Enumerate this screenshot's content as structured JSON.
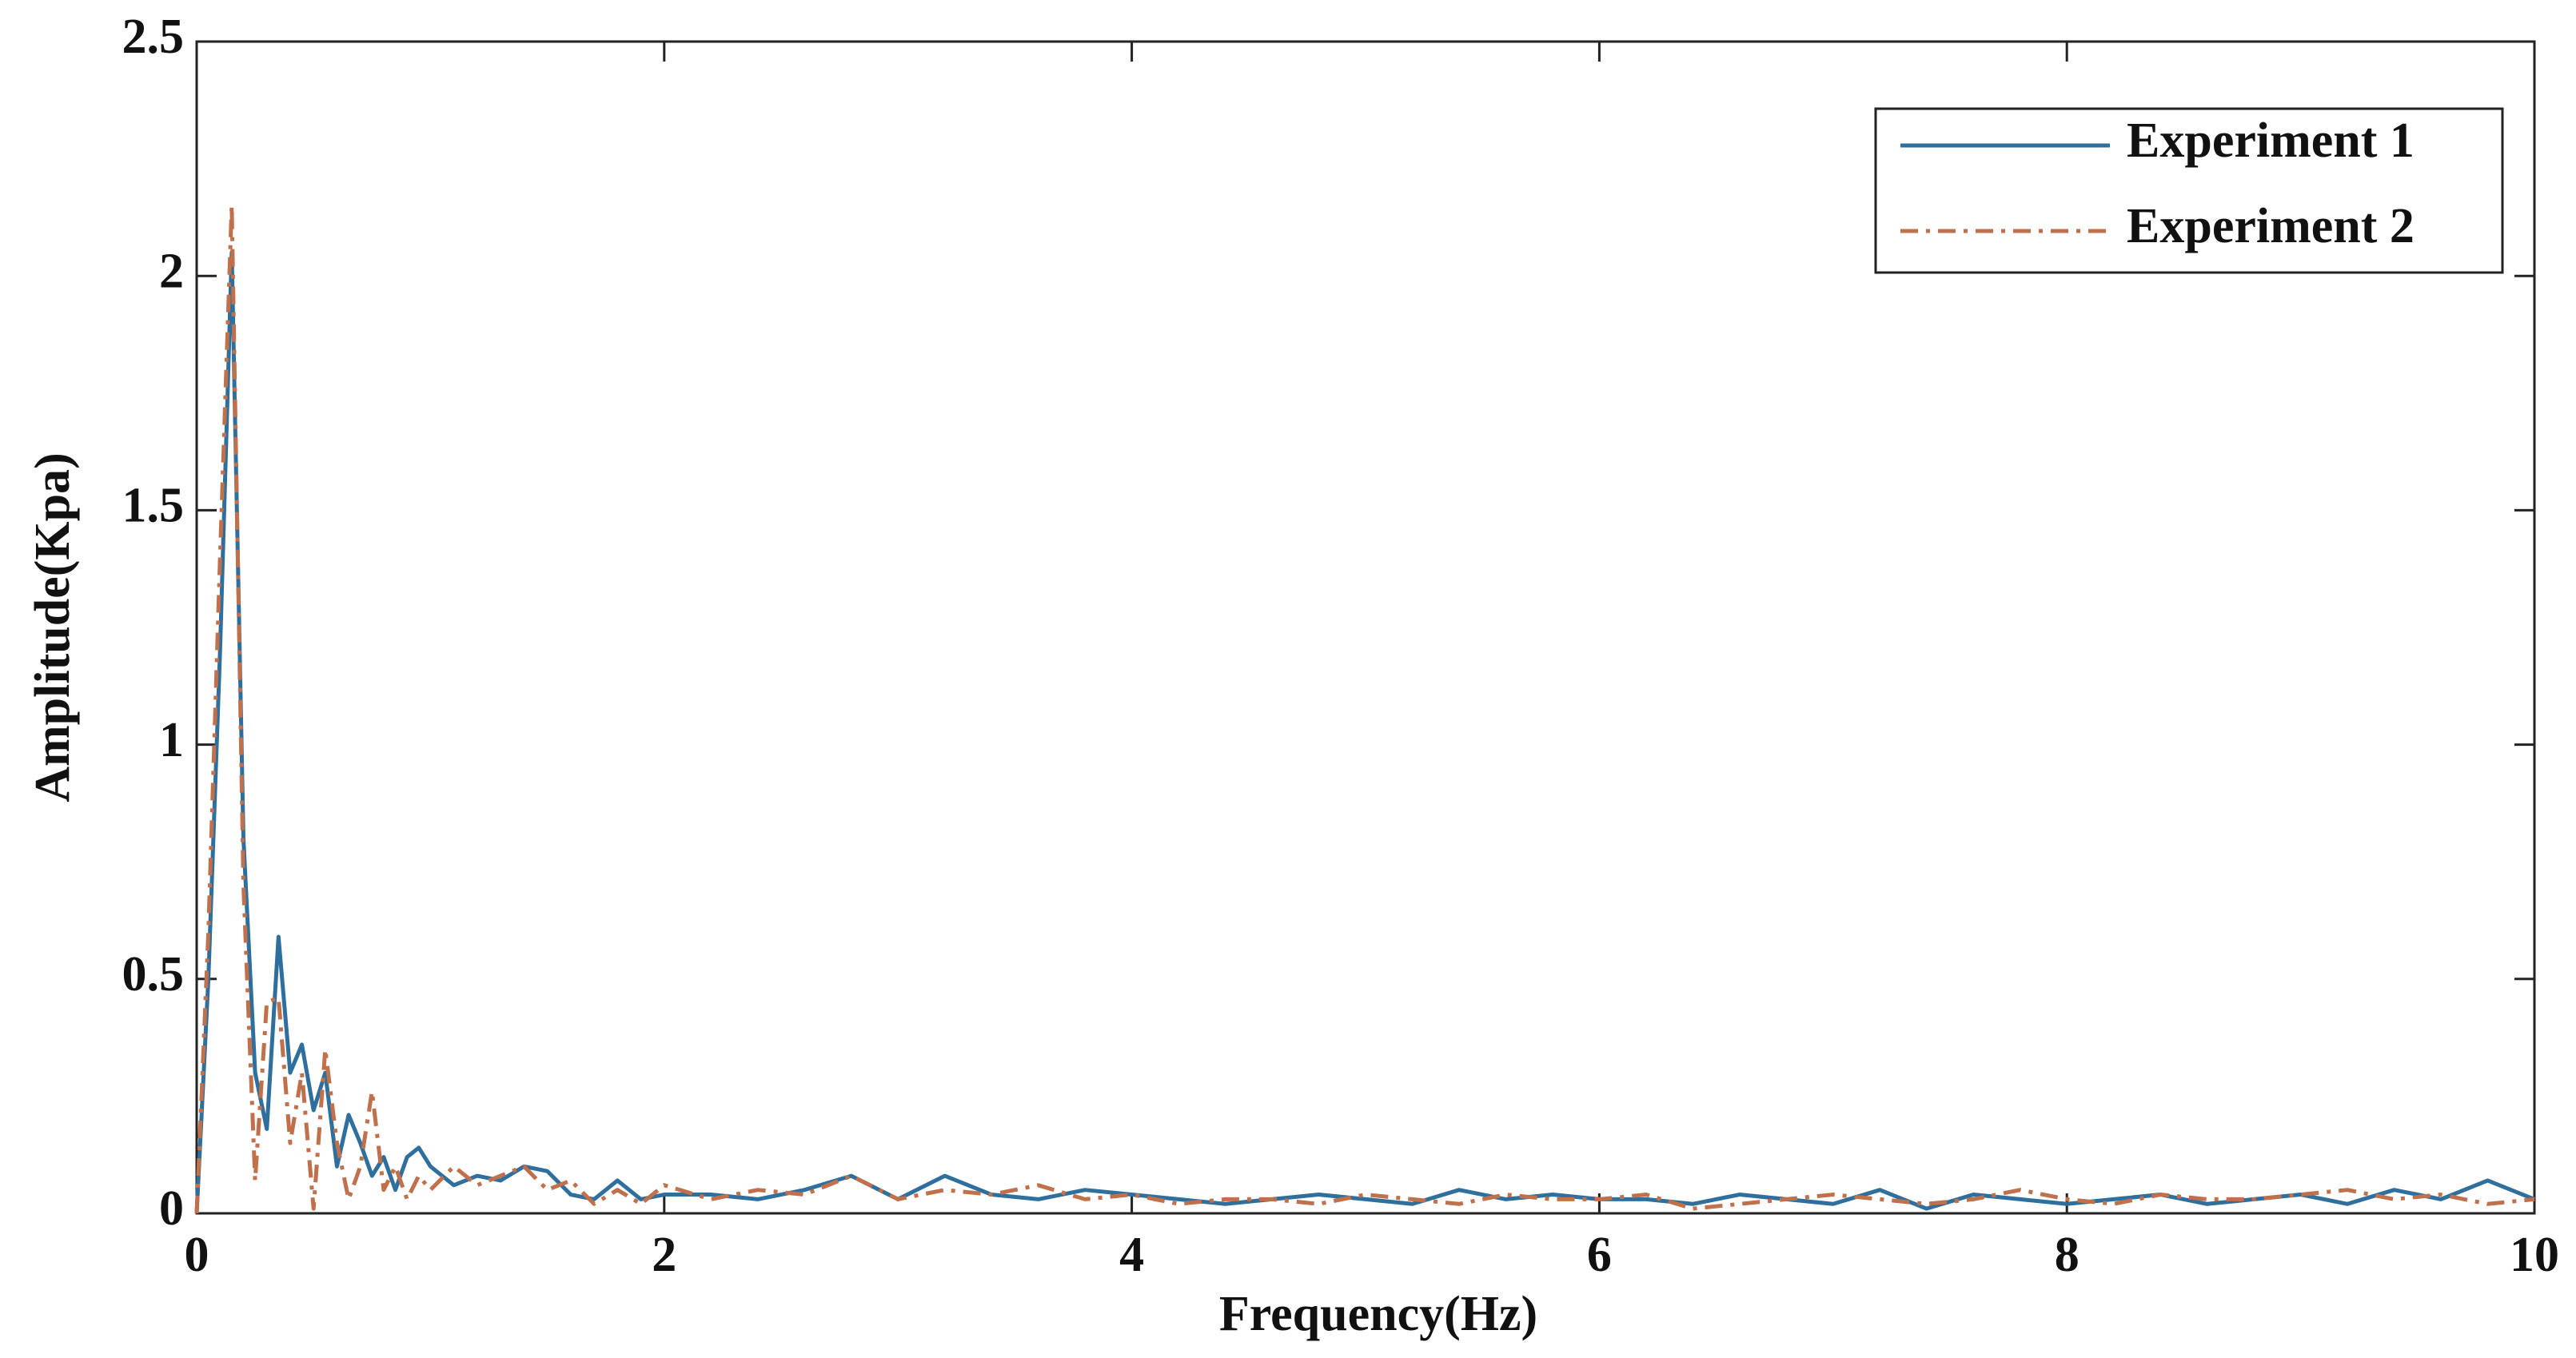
{
  "chart_data": {
    "type": "line",
    "xlabel": "Frequency(Hz)",
    "ylabel": "Amplitude(Kpa)",
    "x": [
      0,
      0.05,
      0.1,
      0.15,
      0.2,
      0.25,
      0.3,
      0.35,
      0.4,
      0.45,
      0.5,
      0.55,
      0.6,
      0.65,
      0.7,
      0.75,
      0.8,
      0.85,
      0.9,
      0.95,
      1.0,
      1.1,
      1.2,
      1.3,
      1.4,
      1.5,
      1.6,
      1.7,
      1.8,
      1.9,
      2.0,
      2.2,
      2.4,
      2.6,
      2.8,
      3.0,
      3.2,
      3.4,
      3.6,
      3.8,
      4.0,
      4.2,
      4.4,
      4.6,
      4.8,
      5.0,
      5.2,
      5.4,
      5.6,
      5.8,
      6.0,
      6.2,
      6.4,
      6.6,
      6.8,
      7.0,
      7.2,
      7.4,
      7.6,
      7.8,
      8.0,
      8.2,
      8.4,
      8.6,
      8.8,
      9.0,
      9.2,
      9.4,
      9.6,
      9.8,
      10.0
    ],
    "series": [
      {
        "name": "Experiment 1",
        "color": "#2e6f9e",
        "linestyle": "solid",
        "values": [
          0,
          0.5,
          1.2,
          2.05,
          0.8,
          0.3,
          0.18,
          0.59,
          0.3,
          0.36,
          0.22,
          0.3,
          0.1,
          0.21,
          0.15,
          0.08,
          0.12,
          0.05,
          0.12,
          0.14,
          0.1,
          0.06,
          0.08,
          0.07,
          0.1,
          0.09,
          0.04,
          0.03,
          0.07,
          0.03,
          0.04,
          0.04,
          0.03,
          0.05,
          0.08,
          0.03,
          0.08,
          0.04,
          0.03,
          0.05,
          0.04,
          0.03,
          0.02,
          0.03,
          0.04,
          0.03,
          0.02,
          0.05,
          0.03,
          0.04,
          0.03,
          0.03,
          0.02,
          0.04,
          0.03,
          0.02,
          0.05,
          0.01,
          0.04,
          0.03,
          0.02,
          0.03,
          0.04,
          0.02,
          0.03,
          0.04,
          0.02,
          0.05,
          0.03,
          0.07,
          0.03
        ]
      },
      {
        "name": "Experiment 2",
        "color": "#c0704a",
        "linestyle": "dashdot",
        "values": [
          0,
          0.6,
          1.4,
          2.15,
          0.7,
          0.07,
          0.45,
          0.46,
          0.15,
          0.3,
          0.01,
          0.35,
          0.15,
          0.03,
          0.1,
          0.26,
          0.05,
          0.1,
          0.03,
          0.08,
          0.05,
          0.1,
          0.06,
          0.08,
          0.1,
          0.05,
          0.07,
          0.02,
          0.05,
          0.02,
          0.06,
          0.03,
          0.05,
          0.04,
          0.08,
          0.03,
          0.05,
          0.04,
          0.06,
          0.03,
          0.04,
          0.02,
          0.03,
          0.03,
          0.02,
          0.04,
          0.03,
          0.02,
          0.04,
          0.03,
          0.03,
          0.04,
          0.01,
          0.02,
          0.03,
          0.04,
          0.03,
          0.02,
          0.03,
          0.05,
          0.03,
          0.02,
          0.04,
          0.03,
          0.03,
          0.04,
          0.05,
          0.03,
          0.04,
          0.02,
          0.03
        ]
      }
    ],
    "xlim": [
      0,
      10
    ],
    "xticks": [
      0,
      2,
      4,
      6,
      8,
      10
    ],
    "ylim": [
      0,
      2.5
    ],
    "yticks": [
      0,
      0.5,
      1,
      1.5,
      2,
      2.5
    ],
    "legend": "upper right"
  }
}
